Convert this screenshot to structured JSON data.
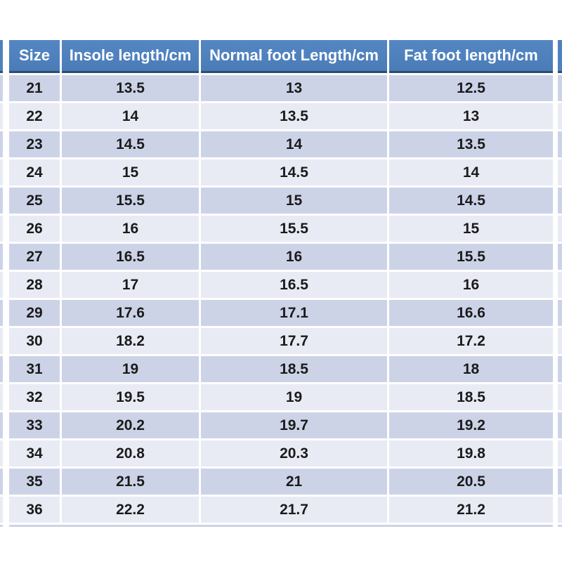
{
  "chart_data": {
    "type": "table",
    "columns": [
      "Size",
      "Insole length/cm",
      "Normal foot Length/cm",
      "Fat foot length/cm"
    ],
    "rows": [
      [
        "21",
        "13.5",
        "13",
        "12.5"
      ],
      [
        "22",
        "14",
        "13.5",
        "13"
      ],
      [
        "23",
        "14.5",
        "14",
        "13.5"
      ],
      [
        "24",
        "15",
        "14.5",
        "14"
      ],
      [
        "25",
        "15.5",
        "15",
        "14.5"
      ],
      [
        "26",
        "16",
        "15.5",
        "15"
      ],
      [
        "27",
        "16.5",
        "16",
        "15.5"
      ],
      [
        "28",
        "17",
        "16.5",
        "16"
      ],
      [
        "29",
        "17.6",
        "17.1",
        "16.6"
      ],
      [
        "30",
        "18.2",
        "17.7",
        "17.2"
      ],
      [
        "31",
        "19",
        "18.5",
        "18"
      ],
      [
        "32",
        "19.5",
        "19",
        "18.5"
      ],
      [
        "33",
        "20.2",
        "19.7",
        "19.2"
      ],
      [
        "34",
        "20.8",
        "20.3",
        "19.8"
      ],
      [
        "35",
        "21.5",
        "21",
        "20.5"
      ],
      [
        "36",
        "22.2",
        "21.7",
        "21.2"
      ]
    ],
    "legend_position": "none",
    "grid": "banded-rows"
  },
  "colors": {
    "page_bg": "#FFFFFF",
    "header_bg": "#4F81BD",
    "header_text": "#FFFFFF",
    "header_border": "#2D4D76",
    "band_dark": "#CDD3E7",
    "band_light": "#E9EBF4",
    "cell_text": "#1B1B1B"
  }
}
